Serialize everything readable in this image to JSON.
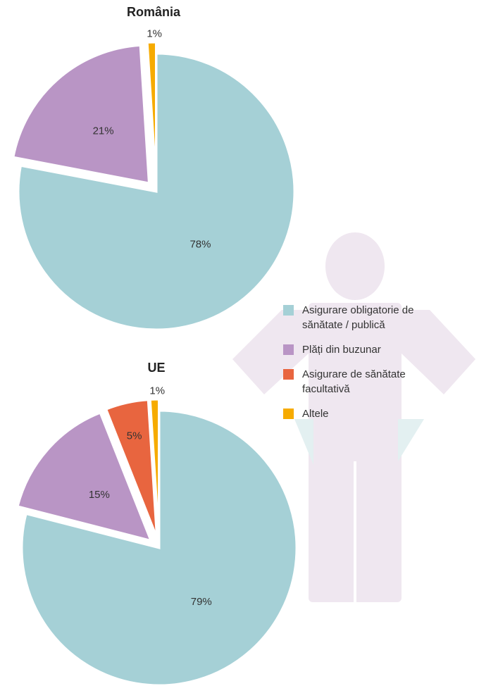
{
  "chart_data": [
    {
      "type": "pie",
      "title": "România",
      "categories": [
        "Asigurare obligatorie de sănătate / publică",
        "Plăți din buzunar",
        "Altele"
      ],
      "values": [
        78,
        21,
        1
      ],
      "value_labels": [
        "78%",
        "21%",
        "1%"
      ],
      "colors": [
        "#a5d0d6",
        "#b995c5",
        "#f6ab00"
      ]
    },
    {
      "type": "pie",
      "title": "UE",
      "categories": [
        "Asigurare obligatorie de sănătate / publică",
        "Plăți din buzunar",
        "Asigurare de sănătate facultativă",
        "Altele"
      ],
      "values": [
        79,
        15,
        5,
        1
      ],
      "value_labels": [
        "79%",
        "15%",
        "5%",
        "1%"
      ],
      "colors": [
        "#a5d0d6",
        "#b995c5",
        "#e8653f",
        "#f6ab00"
      ]
    }
  ]
}
